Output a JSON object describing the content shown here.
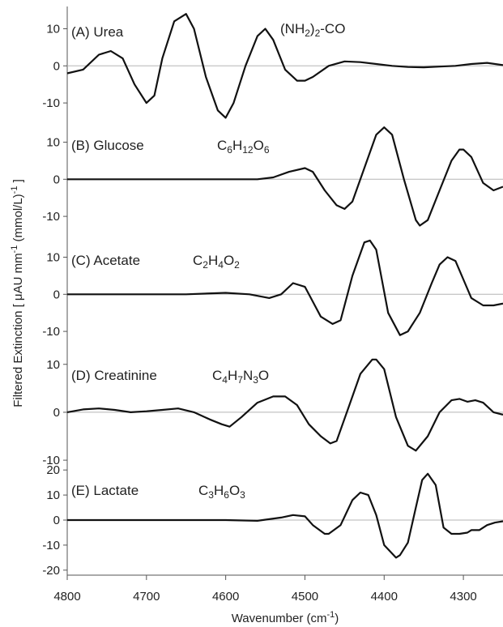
{
  "chart_data": {
    "type": "line",
    "xlabel_main": "Wavenumber (cm",
    "xlabel_sup": "-1",
    "xlabel_end": ")",
    "ylabel_main": "Filtered Extinction [ μAU mm",
    "ylabel_sup1": "-1",
    "ylabel_mid": " (mmol/L)",
    "ylabel_sup2": "-1",
    "ylabel_end": " ]",
    "xlim": [
      4800,
      4250
    ],
    "xticks": [
      4800,
      4700,
      4600,
      4500,
      4400,
      4300
    ],
    "grid": false,
    "panels": [
      {
        "label": "(A) Urea",
        "formula": [
          {
            "t": "(NH"
          },
          {
            "t": "2",
            "sub": true
          },
          {
            "t": ")"
          },
          {
            "t": "2",
            "sub": true
          },
          {
            "t": "-CO"
          }
        ],
        "ylim": [
          -15,
          16
        ],
        "yticks": [
          10,
          0,
          -10
        ],
        "x": [
          4800,
          4780,
          4760,
          4745,
          4730,
          4715,
          4700,
          4690,
          4680,
          4665,
          4650,
          4640,
          4625,
          4610,
          4600,
          4590,
          4575,
          4560,
          4550,
          4540,
          4525,
          4510,
          4500,
          4490,
          4470,
          4450,
          4430,
          4410,
          4390,
          4370,
          4350,
          4330,
          4310,
          4290,
          4270,
          4250
        ],
        "y": [
          -2,
          -1,
          3,
          4,
          2,
          -5,
          -10,
          -8,
          2,
          12,
          14,
          10,
          -3,
          -12,
          -14,
          -10,
          0,
          8,
          10,
          7,
          -1,
          -4,
          -4,
          -3,
          0,
          1.2,
          1,
          0.5,
          0,
          -0.3,
          -0.4,
          -0.2,
          0,
          0.5,
          0.8,
          0.2
        ]
      },
      {
        "label": "(B) Glucose",
        "formula": [
          {
            "t": "C"
          },
          {
            "t": "6",
            "sub": true
          },
          {
            "t": "H"
          },
          {
            "t": "12",
            "sub": true
          },
          {
            "t": "O"
          },
          {
            "t": "6",
            "sub": true
          }
        ],
        "ylim": [
          -15,
          16
        ],
        "yticks": [
          10,
          0,
          -10
        ],
        "x": [
          4800,
          4750,
          4700,
          4650,
          4600,
          4560,
          4540,
          4520,
          4500,
          4490,
          4475,
          4460,
          4450,
          4440,
          4425,
          4410,
          4400,
          4390,
          4375,
          4360,
          4355,
          4345,
          4330,
          4315,
          4305,
          4300,
          4290,
          4275,
          4262,
          4250
        ],
        "y": [
          0,
          0,
          0,
          0,
          0,
          0,
          0.5,
          2,
          3,
          2,
          -3,
          -7,
          -8,
          -6,
          3,
          12,
          14,
          12,
          0,
          -11,
          -12.5,
          -11,
          -3,
          5,
          8,
          8,
          6,
          -1,
          -3,
          -2
        ]
      },
      {
        "label": "(C) Acetate",
        "formula": [
          {
            "t": "C"
          },
          {
            "t": "2",
            "sub": true
          },
          {
            "t": "H"
          },
          {
            "t": "4",
            "sub": true
          },
          {
            "t": "O"
          },
          {
            "t": "2",
            "sub": true
          }
        ],
        "ylim": [
          -15,
          16
        ],
        "yticks": [
          10,
          0,
          -10
        ],
        "x": [
          4800,
          4750,
          4700,
          4650,
          4600,
          4570,
          4545,
          4530,
          4515,
          4500,
          4480,
          4465,
          4455,
          4440,
          4425,
          4418,
          4410,
          4395,
          4380,
          4370,
          4355,
          4340,
          4330,
          4320,
          4310,
          4300,
          4290,
          4275,
          4262,
          4250
        ],
        "y": [
          0,
          0,
          0,
          0,
          0.4,
          0,
          -1,
          0,
          3,
          2,
          -6,
          -8,
          -7,
          5,
          14,
          14.5,
          12,
          -5,
          -11,
          -10,
          -5,
          3,
          8,
          10,
          9,
          4,
          -1,
          -3,
          -3,
          -2.5
        ]
      },
      {
        "label": "(D) Creatinine",
        "formula": [
          {
            "t": "C"
          },
          {
            "t": "4",
            "sub": true
          },
          {
            "t": "H"
          },
          {
            "t": "7",
            "sub": true
          },
          {
            "t": "N"
          },
          {
            "t": "3",
            "sub": true
          },
          {
            "t": "O"
          }
        ],
        "ylim": [
          -11,
          13
        ],
        "yticks": [
          10,
          0,
          -10
        ],
        "x": [
          4800,
          4780,
          4760,
          4740,
          4720,
          4700,
          4680,
          4660,
          4640,
          4620,
          4605,
          4595,
          4580,
          4560,
          4540,
          4525,
          4510,
          4495,
          4480,
          4468,
          4460,
          4445,
          4430,
          4415,
          4410,
          4400,
          4385,
          4370,
          4360,
          4345,
          4330,
          4315,
          4305,
          4295,
          4285,
          4275,
          4262,
          4250
        ],
        "y": [
          0,
          0.6,
          0.8,
          0.5,
          0,
          0.2,
          0.5,
          0.8,
          0,
          -1.5,
          -2.5,
          -3,
          -1,
          2,
          3.3,
          3.3,
          1.5,
          -2.5,
          -5,
          -6.5,
          -6,
          1,
          8,
          11,
          11,
          9,
          -1,
          -7,
          -8,
          -5,
          0,
          2.5,
          2.8,
          2.2,
          2.5,
          2,
          0,
          -0.5
        ]
      },
      {
        "label": "(E) Lactate",
        "formula": [
          {
            "t": "C"
          },
          {
            "t": "3",
            "sub": true
          },
          {
            "t": "H"
          },
          {
            "t": "6",
            "sub": true
          },
          {
            "t": "O"
          },
          {
            "t": "3",
            "sub": true
          }
        ],
        "ylim": [
          -22,
          22
        ],
        "yticks": [
          20,
          10,
          0,
          -10,
          -20
        ],
        "x": [
          4800,
          4750,
          4700,
          4650,
          4600,
          4560,
          4530,
          4515,
          4500,
          4490,
          4475,
          4470,
          4455,
          4440,
          4430,
          4420,
          4410,
          4400,
          4385,
          4380,
          4370,
          4360,
          4352,
          4345,
          4335,
          4325,
          4315,
          4305,
          4295,
          4290,
          4280,
          4270,
          4260,
          4250
        ],
        "y": [
          0,
          0,
          0,
          0,
          0,
          -0.3,
          1,
          2,
          1.5,
          -2,
          -5.5,
          -5.5,
          -2,
          8,
          11,
          10,
          2,
          -10,
          -15,
          -14,
          -9,
          5,
          16,
          18.5,
          14,
          -3,
          -5.5,
          -5.5,
          -5,
          -4,
          -4,
          -2,
          -1,
          -0.5
        ]
      }
    ]
  }
}
